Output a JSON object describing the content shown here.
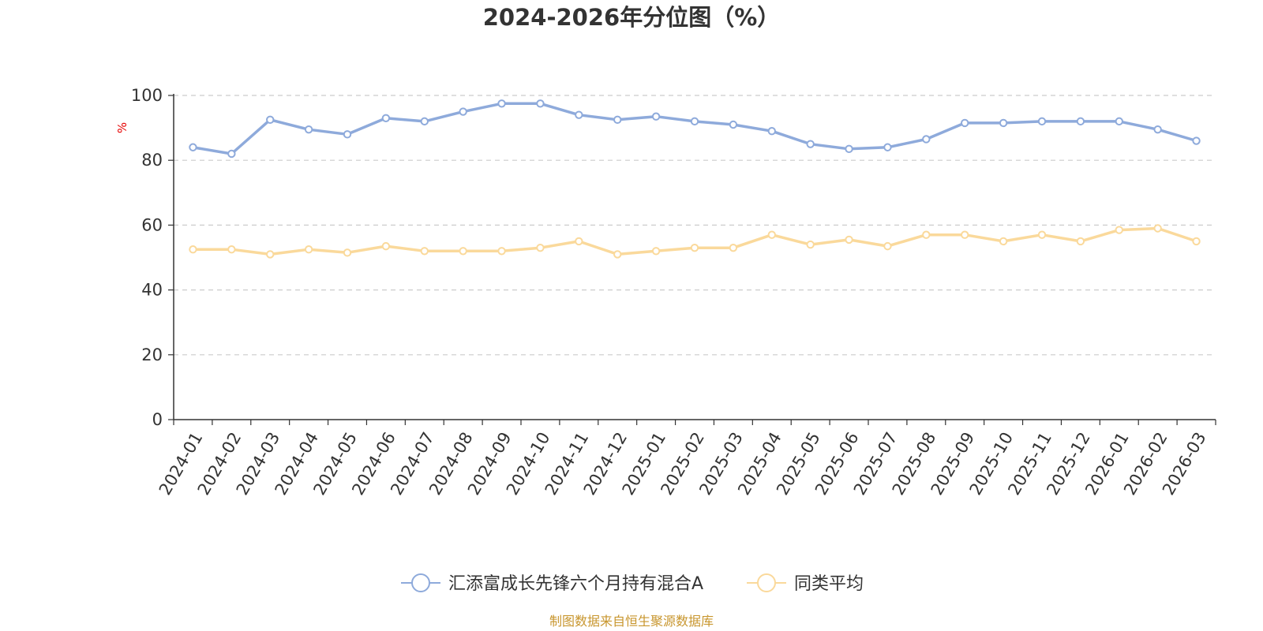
{
  "chart_data": {
    "type": "line",
    "title": "2024-2026年分位图（%）",
    "ylabel": "%",
    "ylim": [
      0,
      100
    ],
    "yticks": [
      0,
      20,
      40,
      60,
      80,
      100
    ],
    "grid": true,
    "legend_position": "bottom-center",
    "categories": [
      "2024-01",
      "2024-02",
      "2024-03",
      "2024-04",
      "2024-05",
      "2024-06",
      "2024-07",
      "2024-08",
      "2024-09",
      "2024-10",
      "2024-11",
      "2024-12",
      "2025-01",
      "2025-02",
      "2025-03",
      "2025-04",
      "2025-05",
      "2025-06",
      "2025-07",
      "2025-08",
      "2025-09",
      "2025-10",
      "2025-11",
      "2025-12",
      "2026-01",
      "2026-02",
      "2026-03"
    ],
    "series": [
      {
        "name": "汇添富成长先锋六个月持有混合A",
        "color": "#8eaadb",
        "values": [
          84,
          82,
          92.5,
          89.5,
          88,
          93,
          92,
          95,
          97.5,
          97.5,
          94,
          92.5,
          93.5,
          92,
          91,
          89,
          85,
          83.5,
          84,
          86.5,
          91.5,
          91.5,
          92,
          92,
          92,
          89.5,
          86
        ]
      },
      {
        "name": "同类平均",
        "color": "#fad99b",
        "values": [
          52.5,
          52.5,
          51,
          52.5,
          51.5,
          53.5,
          52,
          52,
          52,
          53,
          55,
          51,
          52,
          53,
          53,
          57,
          54,
          55.5,
          53.5,
          57,
          57,
          55,
          57,
          55,
          58.5,
          59,
          55
        ]
      }
    ]
  },
  "source_note": "制图数据来自恒生聚源数据库"
}
